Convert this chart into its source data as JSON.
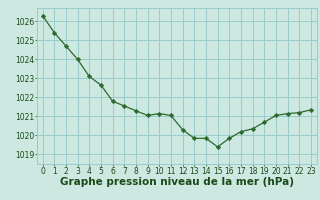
{
  "x": [
    0,
    1,
    2,
    3,
    4,
    5,
    6,
    7,
    8,
    9,
    10,
    11,
    12,
    13,
    14,
    15,
    16,
    17,
    18,
    19,
    20,
    21,
    22,
    23
  ],
  "y": [
    1026.3,
    1025.4,
    1024.7,
    1024.0,
    1023.1,
    1022.65,
    1021.8,
    1021.55,
    1021.3,
    1021.05,
    1021.15,
    1021.05,
    1020.3,
    1019.85,
    1019.85,
    1019.4,
    1019.85,
    1020.2,
    1020.35,
    1020.7,
    1021.05,
    1021.15,
    1021.2,
    1021.35
  ],
  "line_color": "#2d6a2d",
  "marker_color": "#2d6a2d",
  "bg_color": "#cce8e0",
  "grid_color": "#99cccc",
  "xlabel": "Graphe pression niveau de la mer (hPa)",
  "xlabel_color": "#1a4a1a",
  "ylabel_ticks": [
    1019,
    1020,
    1021,
    1022,
    1023,
    1024,
    1025,
    1026
  ],
  "xlim": [
    -0.5,
    23.5
  ],
  "ylim": [
    1018.5,
    1026.7
  ],
  "xtick_labels": [
    "0",
    "1",
    "2",
    "3",
    "4",
    "5",
    "6",
    "7",
    "8",
    "9",
    "10",
    "11",
    "12",
    "13",
    "14",
    "15",
    "16",
    "17",
    "18",
    "19",
    "20",
    "21",
    "22",
    "23"
  ],
  "tick_fontsize": 5.5,
  "xlabel_fontsize": 7.5
}
